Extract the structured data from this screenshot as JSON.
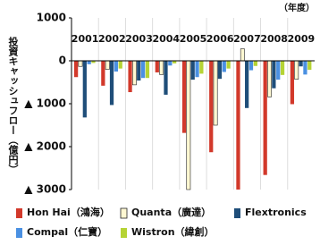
{
  "chart_data": {
    "type": "bar",
    "y_label": "投資キャッシュフロー（億円）",
    "x_unit": "（年度）",
    "categories": [
      "2001",
      "2002",
      "2003",
      "2004",
      "2005",
      "2006",
      "2007",
      "2008",
      "2009"
    ],
    "series": [
      {
        "name": "Hon Hai（鴻海）",
        "color": "#d2392b",
        "values": [
          -380,
          -580,
          -730,
          -270,
          -1680,
          -2130,
          -3000,
          -2660,
          -1010
        ]
      },
      {
        "name": "Quanta（廣達）",
        "color": "#fff8d2",
        "values": [
          -130,
          -200,
          -560,
          -320,
          -3000,
          -1500,
          280,
          -840,
          -430
        ]
      },
      {
        "name": "Flextronics",
        "color": "#1f4e79",
        "values": [
          -1320,
          -1030,
          -460,
          -790,
          -440,
          -420,
          -1100,
          -640,
          -130
        ]
      },
      {
        "name": "Compal（仁寶）",
        "color": "#4a90e2",
        "values": [
          -80,
          -250,
          -400,
          -110,
          -380,
          -260,
          -220,
          -440,
          -320
        ]
      },
      {
        "name": "Wistron（緯創）",
        "color": "#b5d334",
        "values": [
          -50,
          -180,
          -400,
          -60,
          -300,
          -180,
          -120,
          -330,
          -210
        ]
      }
    ],
    "ylim": [
      -3000,
      1000
    ],
    "yticks": [
      1000,
      0,
      {
        "value": -1000,
        "label": "▲ 1000"
      },
      {
        "value": -2000,
        "label": "▲ 2000"
      },
      {
        "value": -3000,
        "label": "▲ 3000"
      }
    ]
  }
}
